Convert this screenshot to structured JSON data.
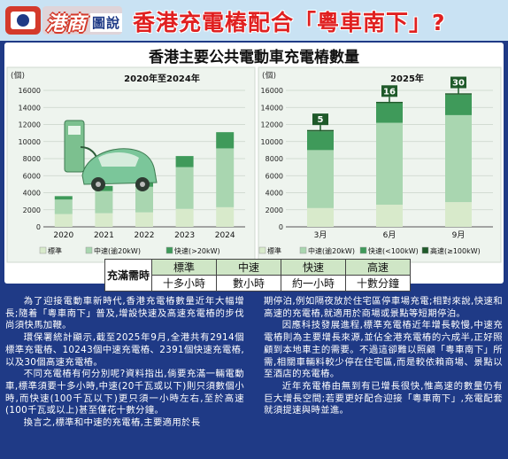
{
  "header": {
    "logo_text": "港商",
    "logo_sub": "圖說",
    "title": "香港充電樁配合「粵車南下」?"
  },
  "chart_title": "香港主要公共電動車充電樁數量",
  "colors": {
    "standard": "#d8eacb",
    "medium": "#a9d6b0",
    "fast": "#3f9a5a",
    "high": "#1f5a2a",
    "navy": "#1f3a86",
    "header_bg": "#c9e2f3",
    "title_red": "#e02020"
  },
  "chart_data": [
    {
      "type": "bar",
      "stacked": true,
      "subtitle": "2020年至2024年",
      "y_unit": "(個)",
      "ylim": [
        0,
        16000
      ],
      "yticks": [
        0,
        2000,
        4000,
        6000,
        8000,
        10000,
        12000,
        14000,
        16000
      ],
      "categories": [
        "2020",
        "2021",
        "2022",
        "2023",
        "2024"
      ],
      "series": [
        {
          "name": "標準",
          "values": [
            1500,
            1600,
            1700,
            2100,
            2300
          ]
        },
        {
          "name": "中速(逾20kW)",
          "values": [
            1700,
            2600,
            3000,
            4900,
            6900
          ]
        },
        {
          "name": "快速(>20kW)",
          "values": [
            400,
            600,
            900,
            1300,
            1900
          ]
        }
      ],
      "legend": [
        "標準",
        "中速(逾20kW)",
        "快速(>20kW)"
      ],
      "legend_position": "bottom"
    },
    {
      "type": "bar",
      "stacked": true,
      "subtitle": "2025年",
      "y_unit": "(個)",
      "ylim": [
        0,
        16000
      ],
      "yticks": [
        0,
        2000,
        4000,
        6000,
        8000,
        10000,
        12000,
        14000,
        16000
      ],
      "categories": [
        "3月",
        "6月",
        "9月"
      ],
      "series": [
        {
          "name": "標準",
          "values": [
            2200,
            2600,
            2900
          ]
        },
        {
          "name": "中速(逾20kW)",
          "values": [
            6800,
            9600,
            10200
          ]
        },
        {
          "name": "快速(<100kW)",
          "values": [
            2200,
            2300,
            2400
          ]
        },
        {
          "name": "高速(≥100kW)",
          "values": [
            5,
            16,
            30
          ]
        }
      ],
      "annotations": [
        "5",
        "16",
        "30"
      ],
      "legend": [
        "標準",
        "中速(逾20kW)",
        "快速(<100kW)",
        "高速(≥100kW)"
      ],
      "legend_position": "bottom"
    }
  ],
  "charge_time_table": {
    "title": "充滿需時",
    "headers": [
      "標準",
      "中速",
      "快速",
      "高速"
    ],
    "values": [
      "十多小時",
      "數小時",
      "約一小時",
      "十數分鐘"
    ]
  },
  "article": {
    "left": [
      "為了迎接電動車新時代,香港充電樁數量近年大幅增長;隨着「粵車南下」普及,增設快速及高速充電樁的步伐尚須快馬加鞭。",
      "環保署統計顯示,截至2025年9月,全港共有2914個標準充電樁、10243個中速充電樁、2391個快速充電樁,以及30個高速充電樁。",
      "不同充電樁有何分別呢?資料指出,倘要充滿一輛電動車,標準須要十多小時,中速(20千瓦或以下)則只須數個小時,而快速(100千瓦以下)更只須一小時左右,至於高速(100千瓦或以上)甚至僅花十數分鐘。",
      "換言之,標準和中速的充電樁,主要適用於長"
    ],
    "right": [
      "期停泊,例如隔夜放於住宅區停車場充電;相對來說,快速和高速的充電樁,就適用於商場或景點等短期停泊。",
      "因應科技發展進程,標準充電樁近年增長較慢,中速充電樁則為主要增長來源,並佔全港充電樁的六成半,正好照顧到本地車主的需要。不過這卻難以照顧「粵車南下」所需,相關車輛料較少停在住宅區,而是較依賴商場、景點以至酒店的充電樁。",
      "近年充電樁由無到有已增長很快,惟高速的數量仍有巨大增長空間;若要更好配合迎接「粵車南下」,充電配套就須提速與時並進。"
    ]
  }
}
